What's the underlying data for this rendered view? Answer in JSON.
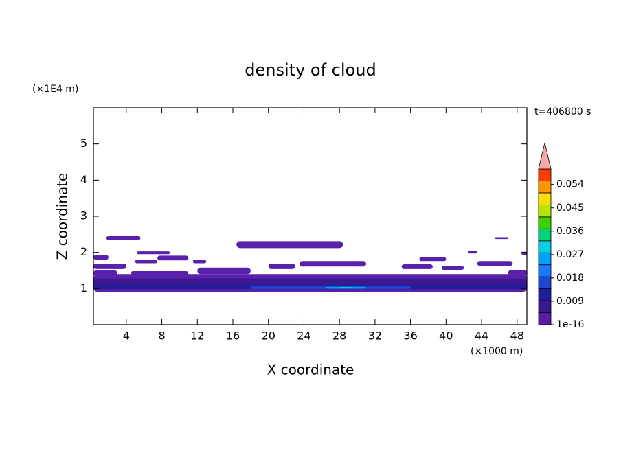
{
  "chart_data": {
    "type": "contour",
    "title": "density of cloud",
    "x_label": "X coordinate",
    "y_label": "Z coordinate",
    "x_unit": "(×1000 m)",
    "y_unit": "(×1E4 m)",
    "time_label": "t=406800 s",
    "xlim": [
      0.3,
      49.1
    ],
    "xticks": [
      4,
      8,
      12,
      16,
      20,
      24,
      28,
      32,
      36,
      40,
      44,
      48
    ],
    "ylim": [
      0,
      6
    ],
    "yticks": [
      1,
      2,
      3,
      4,
      5
    ],
    "colorbar": {
      "clim": [
        0,
        0.06
      ],
      "ticks": [
        {
          "value": 1e-16,
          "label": "1e-16"
        },
        0.009,
        0.018,
        0.027,
        0.036,
        0.045,
        0.054
      ],
      "colors": [
        "#5a1ca8",
        "#3c1890",
        "#1e1e9c",
        "#1e46d2",
        "#1e78ff",
        "#00a0ff",
        "#00d2e6",
        "#00d278",
        "#3cd200",
        "#b4e600",
        "#ffdc00",
        "#ff9600",
        "#ff3c00"
      ],
      "extend_color": "#f4a8a8"
    },
    "regions": [
      {
        "color": "#5a22ac",
        "x": [
          0.3,
          49.1
        ],
        "z": [
          0.91,
          1.4
        ]
      },
      {
        "color": "#5a22ac",
        "x": [
          12,
          18
        ],
        "z": [
          1.4,
          1.58
        ]
      },
      {
        "color": "#5a22ac",
        "x": [
          0.3,
          3
        ],
        "z": [
          1.36,
          1.5
        ]
      },
      {
        "color": "#5a22ac",
        "x": [
          4.5,
          11
        ],
        "z": [
          1.35,
          1.48
        ]
      },
      {
        "color": "#5a22ac",
        "x": [
          47,
          49.1
        ],
        "z": [
          1.35,
          1.52
        ]
      },
      {
        "color": "#5a22ac",
        "x": [
          1.75,
          5.6
        ],
        "z": [
          2.35,
          2.45
        ]
      },
      {
        "color": "#5a22ac",
        "x": [
          16.4,
          28.4
        ],
        "z": [
          2.12,
          2.31
        ]
      },
      {
        "color": "#5a22ac",
        "x": [
          0.3,
          2
        ],
        "z": [
          1.8,
          1.93
        ]
      },
      {
        "color": "#5a22ac",
        "x": [
          5.2,
          8.9
        ],
        "z": [
          1.95,
          2.03
        ]
      },
      {
        "color": "#5a22ac",
        "x": [
          7.5,
          11
        ],
        "z": [
          1.78,
          1.91
        ]
      },
      {
        "color": "#5a22ac",
        "x": [
          5,
          7.5
        ],
        "z": [
          1.7,
          1.8
        ]
      },
      {
        "color": "#5a22ac",
        "x": [
          11.5,
          13
        ],
        "z": [
          1.7,
          1.8
        ]
      },
      {
        "color": "#5a22ac",
        "x": [
          0.3,
          4
        ],
        "z": [
          1.54,
          1.69
        ]
      },
      {
        "color": "#5a22ac",
        "x": [
          20,
          23
        ],
        "z": [
          1.54,
          1.69
        ]
      },
      {
        "color": "#5a22ac",
        "x": [
          23.5,
          31
        ],
        "z": [
          1.61,
          1.76
        ]
      },
      {
        "color": "#5a22ac",
        "x": [
          35,
          38.5
        ],
        "z": [
          1.54,
          1.67
        ]
      },
      {
        "color": "#5a22ac",
        "x": [
          37,
          40
        ],
        "z": [
          1.76,
          1.87
        ]
      },
      {
        "color": "#5a22ac",
        "x": [
          39.5,
          42
        ],
        "z": [
          1.52,
          1.63
        ]
      },
      {
        "color": "#5a22ac",
        "x": [
          43.5,
          47.5
        ],
        "z": [
          1.63,
          1.76
        ]
      },
      {
        "color": "#5a22ac",
        "x": [
          42.5,
          43.5
        ],
        "z": [
          1.97,
          2.05
        ]
      },
      {
        "color": "#5a22ac",
        "x": [
          45.5,
          47
        ],
        "z": [
          2.37,
          2.42
        ]
      },
      {
        "color": "#5a22ac",
        "x": [
          48.5,
          49.1
        ],
        "z": [
          1.93,
          2.02
        ]
      },
      {
        "color": "#3c1890",
        "x": [
          0.3,
          49.1
        ],
        "z": [
          1.0,
          1.28
        ]
      },
      {
        "color": "#1e1e9c",
        "x": [
          0.3,
          49.1
        ],
        "z": [
          0.98,
          1.1
        ]
      },
      {
        "color": "#1e46d2",
        "x": [
          18,
          36
        ],
        "z": [
          0.99,
          1.06
        ]
      },
      {
        "color": "#00a0ff",
        "x": [
          26.5,
          31
        ],
        "z": [
          1.0,
          1.05
        ]
      },
      {
        "color": "#00d2e6",
        "x": [
          28,
          29.5
        ],
        "z": [
          1.01,
          1.04
        ]
      }
    ]
  }
}
